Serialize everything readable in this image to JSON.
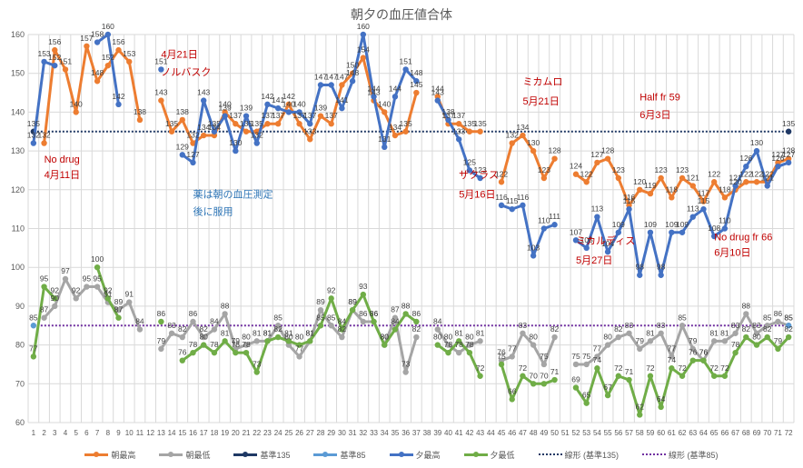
{
  "chart_data": {
    "type": "line",
    "title": "朝夕の血圧値合体",
    "xlabel": "",
    "ylabel": "",
    "ylim": [
      60,
      160
    ],
    "yticks": [
      60,
      70,
      80,
      90,
      100,
      110,
      120,
      130,
      140,
      150,
      160
    ],
    "grid": true,
    "legend_position": "bottom",
    "x": [
      1,
      2,
      3,
      4,
      5,
      6,
      7,
      8,
      9,
      10,
      11,
      12,
      13,
      14,
      15,
      16,
      17,
      18,
      19,
      20,
      21,
      22,
      23,
      24,
      25,
      26,
      27,
      28,
      29,
      30,
      31,
      32,
      33,
      34,
      35,
      36,
      37,
      38,
      39,
      40,
      41,
      42,
      43,
      44,
      45,
      46,
      47,
      48,
      49,
      50,
      51,
      52,
      53,
      54,
      55,
      56,
      57,
      58,
      59,
      60,
      61,
      62,
      63,
      64,
      65,
      66,
      67,
      68,
      69,
      70,
      71,
      72
    ],
    "series": [
      {
        "name": "朝最高",
        "color": "#ED7D31",
        "style": "solid-marker",
        "values": [
          null,
          132,
          156,
          151,
          140,
          157,
          148,
          152,
          156,
          153,
          138,
          null,
          143,
          135,
          138,
          132,
          134,
          134,
          140,
          137,
          135,
          135,
          137,
          137,
          142,
          137,
          133,
          139,
          137,
          147,
          150,
          154,
          143,
          140,
          134,
          135,
          145,
          null,
          144,
          137,
          137,
          135,
          135,
          null,
          122,
          132,
          134,
          130,
          123,
          128,
          null,
          124,
          122,
          127,
          128,
          123,
          116,
          120,
          119,
          123,
          118,
          123,
          121,
          117,
          122,
          118,
          120,
          122,
          122,
          122,
          127,
          128
        ]
      },
      {
        "name": "朝最低",
        "color": "#A5A5A5",
        "style": "solid-marker",
        "values": [
          null,
          87,
          90,
          97,
          92,
          95,
          95,
          91,
          89,
          91,
          84,
          null,
          79,
          83,
          82,
          86,
          82,
          84,
          88,
          79,
          80,
          81,
          81,
          85,
          80,
          77,
          81,
          89,
          85,
          82,
          89,
          86,
          86,
          80,
          87,
          73,
          82,
          null,
          84,
          80,
          78,
          80,
          81,
          null,
          76,
          77,
          83,
          80,
          75,
          82,
          null,
          75,
          75,
          77,
          80,
          82,
          83,
          79,
          81,
          83,
          77,
          85,
          79,
          76,
          81,
          81,
          83,
          88,
          83,
          85,
          86,
          85
        ]
      },
      {
        "name": "基準135",
        "color": "#1F3864",
        "style": "marker-only",
        "values": [
          135,
          null,
          null,
          null,
          null,
          null,
          null,
          null,
          null,
          null,
          null,
          null,
          null,
          null,
          null,
          null,
          null,
          null,
          null,
          null,
          null,
          null,
          null,
          null,
          null,
          null,
          null,
          null,
          null,
          null,
          null,
          null,
          null,
          null,
          null,
          null,
          null,
          null,
          null,
          null,
          null,
          null,
          null,
          null,
          null,
          null,
          null,
          null,
          null,
          null,
          null,
          null,
          null,
          null,
          null,
          null,
          null,
          null,
          null,
          null,
          null,
          null,
          null,
          null,
          null,
          null,
          null,
          null,
          null,
          null,
          null,
          135
        ]
      },
      {
        "name": "基準85",
        "color": "#5B9BD5",
        "style": "marker-only",
        "values": [
          85,
          null,
          null,
          null,
          null,
          null,
          null,
          null,
          null,
          null,
          null,
          null,
          null,
          null,
          null,
          null,
          null,
          null,
          null,
          null,
          null,
          null,
          null,
          null,
          null,
          null,
          null,
          null,
          null,
          null,
          null,
          null,
          null,
          null,
          null,
          null,
          null,
          null,
          null,
          null,
          null,
          null,
          null,
          null,
          null,
          null,
          null,
          null,
          null,
          null,
          null,
          null,
          null,
          null,
          null,
          null,
          null,
          null,
          null,
          null,
          null,
          null,
          null,
          null,
          null,
          null,
          null,
          null,
          null,
          null,
          null,
          85
        ]
      },
      {
        "name": "夕最高",
        "color": "#4472C4",
        "style": "solid-marker",
        "values": [
          132,
          153,
          152,
          null,
          null,
          null,
          158,
          160,
          142,
          null,
          null,
          null,
          151,
          null,
          129,
          127,
          143,
          135,
          139,
          130,
          139,
          132,
          142,
          141,
          140,
          140,
          137,
          147,
          147,
          141,
          148,
          160,
          144,
          131,
          144,
          151,
          148,
          null,
          143,
          138,
          133,
          125,
          123,
          null,
          116,
          115,
          116,
          103,
          110,
          111,
          null,
          107,
          105,
          113,
          104,
          109,
          115,
          98,
          109,
          98,
          109,
          109,
          113,
          115,
          108,
          110,
          121,
          126,
          130,
          121,
          126,
          127
        ]
      },
      {
        "name": "夕最低",
        "color": "#70AD47",
        "style": "solid-marker",
        "values": [
          77,
          95,
          92,
          null,
          null,
          null,
          100,
          92,
          87,
          null,
          null,
          null,
          86,
          null,
          76,
          78,
          80,
          78,
          81,
          78,
          78,
          73,
          81,
          82,
          81,
          80,
          81,
          85,
          92,
          84,
          89,
          93,
          86,
          80,
          84,
          88,
          86,
          null,
          80,
          78,
          81,
          78,
          72,
          null,
          75,
          66,
          72,
          70,
          70,
          71,
          null,
          69,
          65,
          74,
          67,
          72,
          71,
          62,
          72,
          64,
          74,
          72,
          76,
          76,
          72,
          72,
          78,
          82,
          80,
          82,
          79,
          82
        ]
      },
      {
        "name": "線形 (基準135)",
        "color": "#1F3864",
        "style": "dotted",
        "value": 135
      },
      {
        "name": "線形 (基準85)",
        "color": "#7030A0",
        "style": "dotted",
        "value": 85
      }
    ],
    "annotations": [
      {
        "text": "No drug",
        "color": "#C00000",
        "x": 2,
        "y": 127
      },
      {
        "text": "4月11日",
        "color": "#C00000",
        "x": 2,
        "y": 123
      },
      {
        "text": "4月21日",
        "color": "#C00000",
        "x": 13,
        "y": 154
      },
      {
        "text": "ノルバスク",
        "color": "#C00000",
        "x": 13,
        "y": 149.5
      },
      {
        "text": "薬は朝の血圧測定",
        "color": "#2E75B6",
        "x": 16,
        "y": 118
      },
      {
        "text": "後に服用",
        "color": "#2E75B6",
        "x": 16,
        "y": 113.5
      },
      {
        "text": "ミカムロ",
        "color": "#C00000",
        "x": 47,
        "y": 147
      },
      {
        "text": "5月21日",
        "color": "#C00000",
        "x": 47,
        "y": 142
      },
      {
        "text": "ザクラス",
        "color": "#C00000",
        "x": 41,
        "y": 123
      },
      {
        "text": "5月16日",
        "color": "#C00000",
        "x": 41,
        "y": 118
      },
      {
        "text": "ミカルディス",
        "color": "#C00000",
        "x": 52,
        "y": 106
      },
      {
        "text": "5月27日",
        "color": "#C00000",
        "x": 52,
        "y": 101
      },
      {
        "text": "Half fr 59",
        "color": "#C00000",
        "x": 58,
        "y": 143
      },
      {
        "text": "6月3日",
        "color": "#C00000",
        "x": 58,
        "y": 138.5
      },
      {
        "text": "No drug fr 66",
        "color": "#C00000",
        "x": 65,
        "y": 107
      },
      {
        "text": "6月10日",
        "color": "#C00000",
        "x": 65,
        "y": 103
      }
    ]
  }
}
